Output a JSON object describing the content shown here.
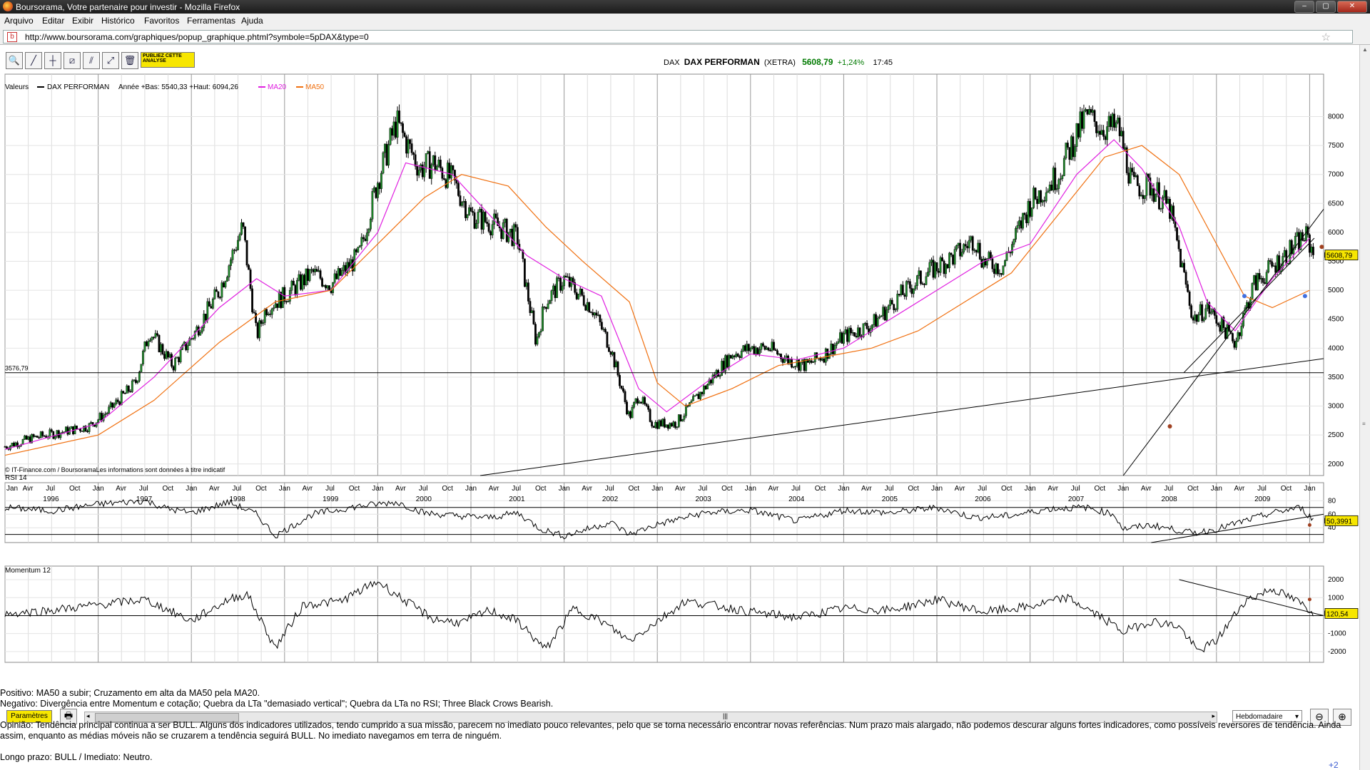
{
  "window": {
    "title": "Boursorama, Votre partenaire pour investir - Mozilla Firefox",
    "minimize": "‒",
    "maximize": "▢",
    "close": "✕"
  },
  "menu": [
    "Arquivo",
    "Editar",
    "Exibir",
    "Histórico",
    "Favoritos",
    "Ferramentas",
    "Ajuda"
  ],
  "url": "http://www.boursorama.com/graphiques/popup_graphique.phtml?symbole=5pDAX&type=0",
  "toolbar": {
    "publiez": "PUBLIEZ CETTE ANALYSE",
    "tools": [
      {
        "name": "zoom-tool-icon",
        "glyph": "🔍"
      },
      {
        "name": "trendline-tool-icon",
        "glyph": "╱"
      },
      {
        "name": "hline-tool-icon",
        "glyph": "┼"
      },
      {
        "name": "channel-tool-icon",
        "glyph": "⧄"
      },
      {
        "name": "fibonacci-tool-icon",
        "glyph": "⫽"
      },
      {
        "name": "parallel-tool-icon",
        "glyph": "⤢"
      },
      {
        "name": "trash-icon",
        "glyph": "🗑"
      }
    ]
  },
  "quote": {
    "code": "DAX",
    "name": "DAX PERFORMAN",
    "market": "(XETRA)",
    "price": "5608,79",
    "change": "+1,24%",
    "time": "17:45"
  },
  "colors": {
    "price": "#000000",
    "ma20": "#e020e0",
    "ma50": "#f07010",
    "rsi": "#000000",
    "momentum": "#000000",
    "badge": "#f7e600",
    "up": "#007a00"
  },
  "chart_data": [
    {
      "type": "candlestick",
      "title": "",
      "legend": {
        "label": "Valeurs",
        "series": "DAX PERFORMAN",
        "stats": "Année +Bas: 5540,33 +Haut: 6094,26",
        "ma20": "MA20",
        "ma50": "MA50"
      },
      "copyright": "© IT-Finance.com / BoursoramaLes informations sont données à titre indicatif",
      "ylim": [
        1800,
        8400
      ],
      "yticks": [
        2000,
        2500,
        3000,
        3500,
        4000,
        4500,
        5000,
        5500,
        6000,
        6500,
        7000,
        7500,
        8000
      ],
      "hline": {
        "value": 3576.79,
        "label": "3576,79"
      },
      "last_value": {
        "value": 5608.79,
        "label": "5608,79"
      },
      "month_labels": [
        "Jan",
        "Avr",
        "Jul",
        "Oct",
        "Jan",
        "Avr",
        "Jul",
        "Oct",
        "Jan",
        "Avr",
        "Jul",
        "Oct",
        "Jan",
        "Avr",
        "Jul",
        "Oct",
        "Jan",
        "Avr",
        "Jul",
        "Oct",
        "Jan",
        "Avr",
        "Jul",
        "Oct",
        "Jan",
        "Avr",
        "Jul",
        "Oct",
        "Jan",
        "Avr",
        "Jul",
        "Oct",
        "Jan",
        "Avr",
        "Jul",
        "Oct",
        "Jan",
        "Avr",
        "Jul",
        "Oct",
        "Jan",
        "Avr",
        "Jul",
        "Oct",
        "Jan",
        "Avr",
        "Jul",
        "Oct",
        "Jan",
        "Avr",
        "Jul",
        "Oct",
        "Jan",
        "Avr",
        "Jul",
        "Oct",
        "Jan"
      ],
      "year_labels": [
        "1996",
        "1997",
        "1998",
        "1999",
        "2000",
        "2001",
        "2002",
        "2003",
        "2004",
        "2005",
        "2006",
        "2007",
        "2008",
        "2009"
      ],
      "series": [
        {
          "name": "DAX PERFORMAN",
          "x": [
            1996.0,
            1996.3,
            1996.6,
            1996.9,
            1997.1,
            1997.4,
            1997.55,
            1997.8,
            1998.05,
            1998.3,
            1998.55,
            1998.7,
            1998.8,
            1999.0,
            1999.3,
            1999.5,
            1999.8,
            2000.0,
            2000.2,
            2000.45,
            2000.6,
            2000.8,
            2001.0,
            2001.3,
            2001.5,
            2001.7,
            2001.8,
            2002.0,
            2002.3,
            2002.5,
            2002.7,
            2002.8,
            2002.95,
            2003.2,
            2003.5,
            2003.8,
            2004.0,
            2004.2,
            2004.4,
            2004.6,
            2004.8,
            2005.0,
            2005.3,
            2005.6,
            2005.9,
            2006.2,
            2006.4,
            2006.5,
            2006.7,
            2007.0,
            2007.3,
            2007.5,
            2007.6,
            2007.8,
            2007.95,
            2008.1,
            2008.3,
            2008.5,
            2008.75,
            2008.9,
            2009.2,
            2009.4,
            2009.6,
            2009.8,
            2009.95,
            2010.05
          ],
          "values": [
            2300,
            2450,
            2550,
            2650,
            2900,
            3400,
            4300,
            3700,
            4300,
            5000,
            6100,
            4200,
            4700,
            4900,
            5300,
            5100,
            5600,
            6900,
            7900,
            7100,
            7200,
            6900,
            6300,
            6100,
            5900,
            4100,
            4800,
            5200,
            4700,
            4000,
            2800,
            3200,
            2700,
            2700,
            3300,
            3900,
            4000,
            4000,
            3800,
            3700,
            3900,
            4200,
            4400,
            4900,
            5300,
            5600,
            5900,
            5500,
            5400,
            6500,
            7000,
            7700,
            8000,
            7800,
            7800,
            6800,
            6800,
            6400,
            4500,
            4700,
            4100,
            5100,
            5400,
            5700,
            5950,
            5608.79
          ]
        },
        {
          "name": "MA20",
          "x": [
            1996.0,
            1997.0,
            1997.6,
            1998.3,
            1998.7,
            1999.0,
            1999.5,
            2000.0,
            2000.3,
            2000.8,
            2001.2,
            2001.6,
            2002.0,
            2002.4,
            2002.8,
            2003.1,
            2003.6,
            2004.0,
            2004.5,
            2005.0,
            2005.5,
            2006.0,
            2006.5,
            2007.0,
            2007.5,
            2007.9,
            2008.2,
            2008.6,
            2008.9,
            2009.2,
            2009.6,
            2010.0
          ],
          "values": [
            2250,
            2700,
            3500,
            4700,
            5200,
            4900,
            5000,
            6000,
            7200,
            7000,
            6300,
            5600,
            5200,
            4900,
            3300,
            2900,
            3500,
            3900,
            3800,
            4000,
            4500,
            5000,
            5500,
            5800,
            7000,
            7600,
            7100,
            6100,
            4800,
            4300,
            5200,
            5900
          ]
        },
        {
          "name": "MA50",
          "x": [
            1996.0,
            1997.0,
            1997.6,
            1998.3,
            1998.9,
            1999.5,
            2000.0,
            2000.5,
            2000.9,
            2001.4,
            2001.8,
            2002.2,
            2002.7,
            2003.0,
            2003.3,
            2003.8,
            2004.3,
            2004.8,
            2005.3,
            2005.8,
            2006.3,
            2006.8,
            2007.3,
            2007.8,
            2008.2,
            2008.6,
            2009.0,
            2009.3,
            2009.6,
            2010.0
          ],
          "values": [
            2150,
            2500,
            3100,
            4100,
            4800,
            5000,
            5800,
            6600,
            7000,
            6800,
            6100,
            5500,
            4800,
            3400,
            3000,
            3300,
            3700,
            3850,
            4000,
            4300,
            4800,
            5300,
            6300,
            7300,
            7500,
            7000,
            5800,
            4900,
            4700,
            5000
          ]
        }
      ]
    },
    {
      "type": "line",
      "title": "RSI 14",
      "ylim": [
        18,
        92
      ],
      "yticks": [
        40,
        60,
        80
      ],
      "levels": [
        30,
        70
      ],
      "last_value": {
        "value": 50.3991,
        "label": "50,3991"
      },
      "series": [
        {
          "name": "RSI 14",
          "x": [
            1996.0,
            1996.5,
            1997.0,
            1997.5,
            1997.75,
            1998.0,
            1998.4,
            1998.7,
            1998.9,
            1999.3,
            1999.8,
            2000.2,
            2000.5,
            2000.8,
            2001.2,
            2001.5,
            2001.75,
            2002.0,
            2002.5,
            2002.7,
            2003.0,
            2003.5,
            2004.0,
            2004.5,
            2005.0,
            2005.5,
            2006.0,
            2006.4,
            2006.8,
            2007.2,
            2007.6,
            2007.9,
            2008.0,
            2008.3,
            2008.75,
            2009.0,
            2009.3,
            2009.6,
            2009.9,
            2010.05
          ],
          "values": [
            70,
            65,
            75,
            80,
            68,
            62,
            78,
            60,
            28,
            60,
            72,
            78,
            62,
            58,
            55,
            62,
            38,
            28,
            48,
            30,
            45,
            62,
            66,
            50,
            66,
            62,
            70,
            55,
            58,
            68,
            70,
            60,
            38,
            44,
            32,
            38,
            50,
            62,
            70,
            50.4
          ]
        }
      ]
    },
    {
      "type": "line",
      "title": "Momentum 12",
      "ylim": [
        -2600,
        2200
      ],
      "yticks": [
        -2000,
        -1000,
        0,
        1000,
        2000
      ],
      "zero_line": 0,
      "last_value": {
        "value": 120.54,
        "label": "120,54"
      },
      "series": [
        {
          "name": "Momentum 12",
          "x": [
            1996.0,
            1996.5,
            1997.0,
            1997.5,
            1997.8,
            1998.0,
            1998.4,
            1998.6,
            1998.9,
            1999.2,
            1999.6,
            2000.0,
            2000.3,
            2000.6,
            2000.9,
            2001.2,
            2001.5,
            2001.8,
            2002.1,
            2002.4,
            2002.7,
            2003.0,
            2003.3,
            2003.7,
            2004.0,
            2004.5,
            2005.0,
            2005.5,
            2006.0,
            2006.5,
            2007.0,
            2007.4,
            2007.8,
            2008.0,
            2008.3,
            2008.6,
            2008.8,
            2009.0,
            2009.3,
            2009.6,
            2009.9,
            2010.05
          ],
          "values": [
            100,
            300,
            600,
            900,
            200,
            -300,
            900,
            1200,
            -1800,
            600,
            800,
            1900,
            800,
            -200,
            -400,
            300,
            -300,
            -1900,
            400,
            -300,
            -1400,
            -300,
            800,
            500,
            200,
            -100,
            400,
            300,
            900,
            200,
            500,
            1000,
            -200,
            -900,
            -300,
            -600,
            -2000,
            -1400,
            800,
            1500,
            700,
            120.54
          ]
        }
      ]
    }
  ],
  "bottom": {
    "params": "Paramètres",
    "period": "Hebdomadaire"
  },
  "commentary": {
    "positivo": "Positivo: MA50 a subir; Cruzamento em alta da MA50 pela MA20.",
    "negativo": "Negativo: Divergência entre Momentum e cotação; Quebra da LTa \"demasiado vertical\"; Quebra da LTa no RSI; Three Black Crows Bearish.",
    "opiniao": "Opinião: Tendência principal continua a ser BULL. Alguns dos indicadores utilizados, tendo cumprido a sua missão, parecem no imediato pouco relevantes, pelo que se torna necessário encontrar novas referências. Num prazo mais alargado, não podemos descurar alguns fortes indicadores, como possíveis reversores de tendência. Ainda assim, enquanto as médias móveis não se cruzarem a tendência seguirá BULL. No imediato navegamos em terra de ninguém.",
    "prazo": "Longo prazo: BULL  / Imediato: Neutro.",
    "plus": "+2"
  }
}
